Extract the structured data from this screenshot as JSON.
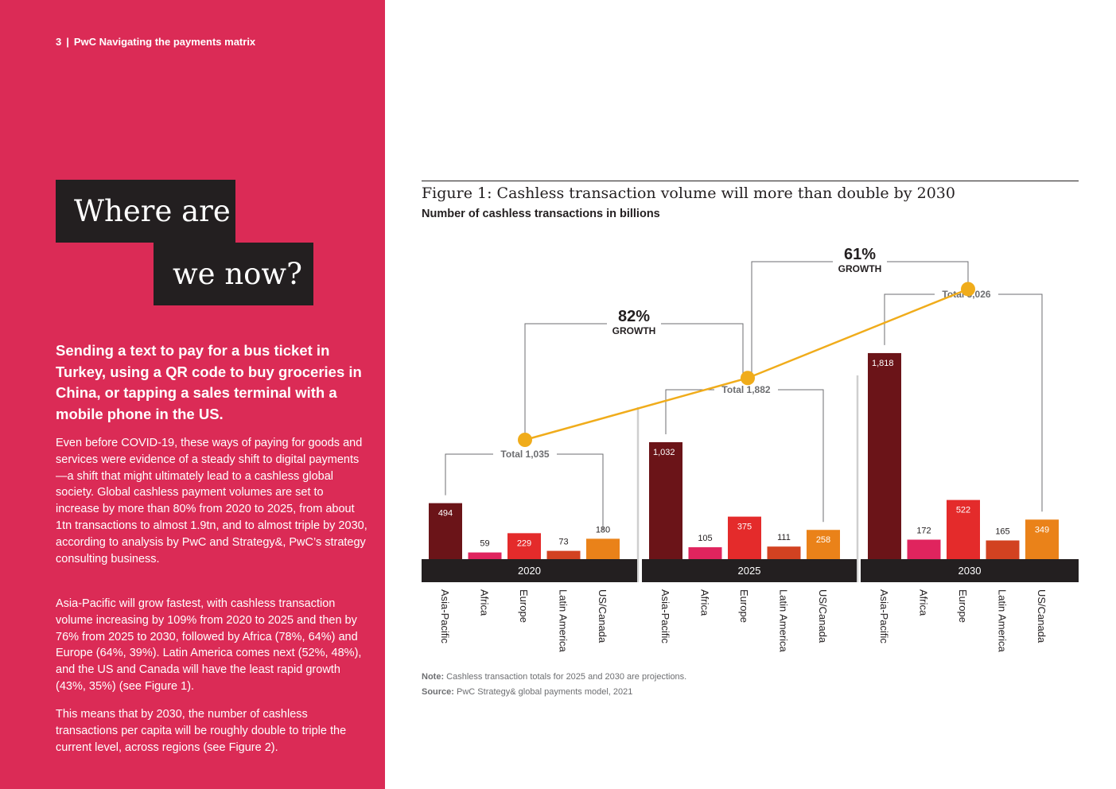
{
  "header": {
    "page_number": "3",
    "separator": "|",
    "title": "PwC Navigating the payments matrix"
  },
  "heading": {
    "line1": "Where are",
    "line2": "we now?"
  },
  "lead": "Sending a text to pay for a bus ticket in Turkey, using a QR code to buy groceries in China, or tapping a sales terminal with a mobile phone in the US.",
  "paragraphs": [
    "Even before COVID-19, these ways of paying for goods and services were evidence of a steady shift to digital payments—a shift that might ultimately lead to a cashless global society. Global cashless payment volumes are set to increase by more than 80% from 2020 to 2025, from about 1tn transactions to almost 1.9tn, and to almost triple by 2030, according to analysis by PwC and Strategy&, PwC’s strategy consulting business.",
    "Asia-Pacific will grow fastest, with cashless transaction volume increasing by 109% from 2020 to 2025 and then by 76% from 2025 to 2030, followed by Africa (78%, 64%) and Europe (64%, 39%). Latin America comes next (52%, 48%), and the US and Canada will have the least rapid growth (43%, 35%) (see Figure 1).",
    "This means that by 2030, the number of cashless transactions per capita will be roughly double to triple the current level, across regions (see Figure 2)."
  ],
  "figure": {
    "title": "Figure 1: Cashless transaction volume will more than double by 2030",
    "subtitle": "Number of cashless transactions in billions",
    "note_label": "Note:",
    "note_text": " Cashless transaction totals for 2025 and 2030 are projections.",
    "source_label": "Source:",
    "source_text": " PwC Strategy& global payments model, 2021"
  },
  "colors": {
    "panel": "#db2b56",
    "Asia-Pacific": "#6b1418",
    "Africa": "#e0245e",
    "Europe": "#e42b2b",
    "Latin America": "#d24221",
    "US/Canada": "#ea8219",
    "total_line": "#f0ac1b",
    "axis_band": "#231f20"
  },
  "chart_data": {
    "type": "bar",
    "categories": [
      "2020",
      "2025",
      "2030"
    ],
    "regions": [
      "Asia-Pacific",
      "Africa",
      "Europe",
      "Latin America",
      "US/Canada"
    ],
    "series": [
      {
        "name": "Asia-Pacific",
        "values": [
          494,
          1032,
          1818
        ],
        "labels": [
          "494",
          "1,032",
          "1,818"
        ]
      },
      {
        "name": "Africa",
        "values": [
          59,
          105,
          172
        ],
        "labels": [
          "59",
          "105",
          "172"
        ]
      },
      {
        "name": "Europe",
        "values": [
          229,
          375,
          522
        ],
        "labels": [
          "229",
          "375",
          "522"
        ]
      },
      {
        "name": "Latin America",
        "values": [
          73,
          111,
          165
        ],
        "labels": [
          "73",
          "111",
          "165"
        ]
      },
      {
        "name": "US/Canada",
        "values": [
          180,
          258,
          349
        ],
        "labels": [
          "180",
          "258",
          "349"
        ]
      }
    ],
    "totals": {
      "values": [
        1035,
        1882,
        3026
      ],
      "labels": [
        "Total 1,035",
        "Total 1,882",
        "Total 3,026"
      ]
    },
    "growth": [
      {
        "pct": "82%",
        "label": "GROWTH"
      },
      {
        "pct": "61%",
        "label": "GROWTH"
      }
    ]
  }
}
